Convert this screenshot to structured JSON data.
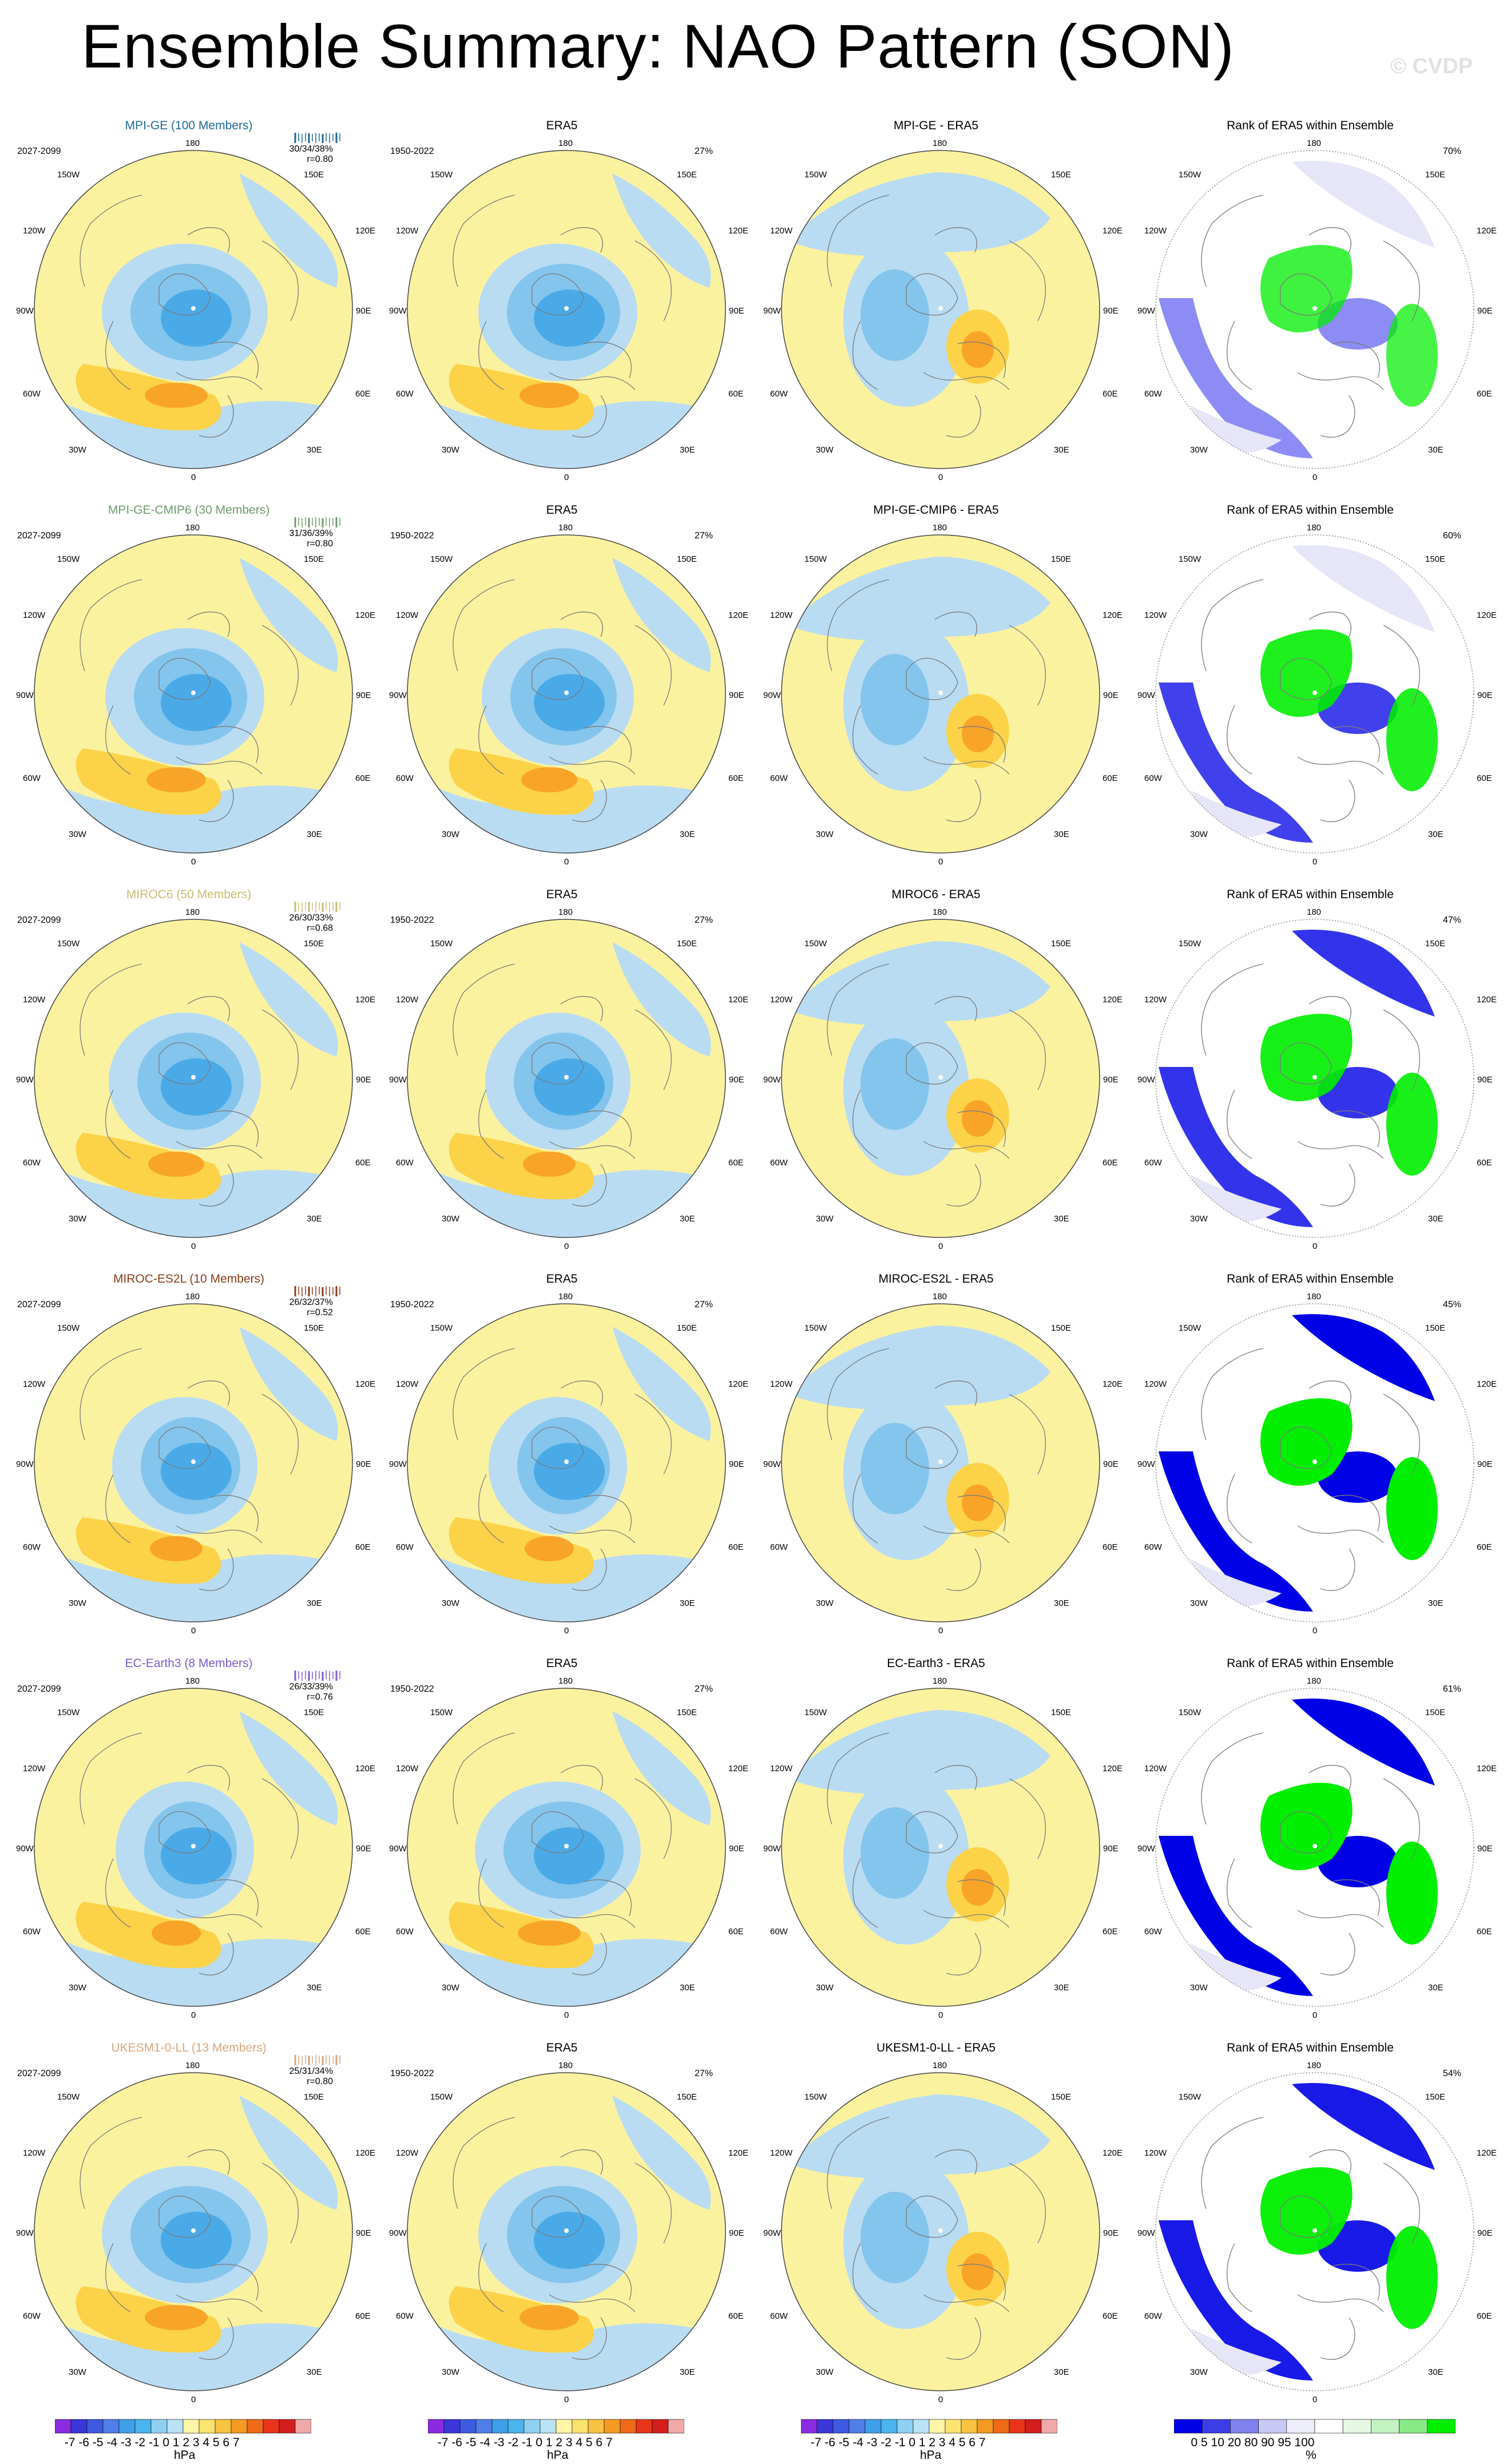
{
  "title": "Ensemble Summary: NAO Pattern (SON)",
  "copyright": "© CVDP",
  "colors": {
    "positive_light": "#fbf2a0",
    "positive_1": "#fbd248",
    "positive_2": "#f8a428",
    "negative_light": "#b9dcf2",
    "negative_1": "#84c5ed",
    "negative_2": "#4aaae8",
    "rank_low": "#0000e6",
    "rank_mid": "#e6e6f8",
    "rank_high": "#00ee00"
  },
  "lon_labels": {
    "top": "180",
    "bottom": "0",
    "upper_left": "150W",
    "upper_right": "150E",
    "mid_upper_left": "120W",
    "mid_upper_right": "120E",
    "left": "90W",
    "right": "90E",
    "mid_lower_left": "60W",
    "mid_lower_right": "60E",
    "lower_left": "30W",
    "lower_right": "30E"
  },
  "rows": [
    {
      "model": "MPI-GE (100 Members)",
      "model_color": "#1d6a94",
      "period": "2027-2099",
      "stats_line1": "30/34/38%",
      "stats_line2": "r=0.80",
      "era_title": "ERA5",
      "era_period": "1950-2022",
      "era_pct": "27%",
      "diff_title": "MPI-GE - ERA5",
      "rank_title": "Rank of ERA5 within Ensemble",
      "rank_pct": "70%"
    },
    {
      "model": "MPI-GE-CMIP6 (30 Members)",
      "model_color": "#6e9a6e",
      "period": "2027-2099",
      "stats_line1": "31/36/39%",
      "stats_line2": "r=0.80",
      "era_title": "ERA5",
      "era_period": "1950-2022",
      "era_pct": "27%",
      "diff_title": "MPI-GE-CMIP6 - ERA5",
      "rank_title": "Rank of ERA5 within Ensemble",
      "rank_pct": "60%"
    },
    {
      "model": "MIROC6 (50 Members)",
      "model_color": "#c8bd72",
      "period": "2027-2099",
      "stats_line1": "26/30/33%",
      "stats_line2": "r=0.68",
      "era_title": "ERA5",
      "era_period": "1950-2022",
      "era_pct": "27%",
      "diff_title": "MIROC6 - ERA5",
      "rank_title": "Rank of ERA5 within Ensemble",
      "rank_pct": "47%"
    },
    {
      "model": "MIROC-ES2L (10 Members)",
      "model_color": "#8a3b1b",
      "period": "2027-2099",
      "stats_line1": "26/32/37%",
      "stats_line2": "r=0.52",
      "era_title": "ERA5",
      "era_period": "1950-2022",
      "era_pct": "27%",
      "diff_title": "MIROC-ES2L - ERA5",
      "rank_title": "Rank of ERA5 within Ensemble",
      "rank_pct": "45%"
    },
    {
      "model": "EC-Earth3 (8 Members)",
      "model_color": "#7b5bcf",
      "period": "2027-2099",
      "stats_line1": "26/33/39%",
      "stats_line2": "r=0.76",
      "era_title": "ERA5",
      "era_period": "1950-2022",
      "era_pct": "27%",
      "diff_title": "EC-Earth3 - ERA5",
      "rank_title": "Rank of ERA5 within Ensemble",
      "rank_pct": "61%"
    },
    {
      "model": "UKESM1-0-LL (13 Members)",
      "model_color": "#d9a57b",
      "period": "2027-2099",
      "stats_line1": "25/31/34%",
      "stats_line2": "r=0.80",
      "era_title": "ERA5",
      "era_period": "1950-2022",
      "era_pct": "27%",
      "diff_title": "UKESM1-0-LL - ERA5",
      "rank_title": "Rank of ERA5 within Ensemble",
      "rank_pct": "54%"
    }
  ],
  "colorbars": {
    "hpa": {
      "unit": "hPa",
      "tick_labels": "-7 -6 -5 -4 -3 -2 -1 0  1  2  3  4  5  6  7",
      "colors": [
        "#8a2be2",
        "#3a36d8",
        "#3e5ae0",
        "#4f7ee8",
        "#3f9ee8",
        "#4ab4ee",
        "#8fd0f2",
        "#b9e2f6",
        "#fff5a8",
        "#fbe370",
        "#f8c242",
        "#f49a22",
        "#ee6a18",
        "#e8341a",
        "#d41e1e",
        "#f0a8a8"
      ]
    },
    "rank": {
      "unit": "%",
      "tick_labels": "0    5    10       20       80       90  95  100",
      "colors": [
        "#0000e6",
        "#3d3de8",
        "#8080ee",
        "#c8c8f4",
        "#eeeefa",
        "#ffffff",
        "#e4f8e4",
        "#c2f2c2",
        "#86ea86",
        "#00ee00"
      ]
    }
  }
}
